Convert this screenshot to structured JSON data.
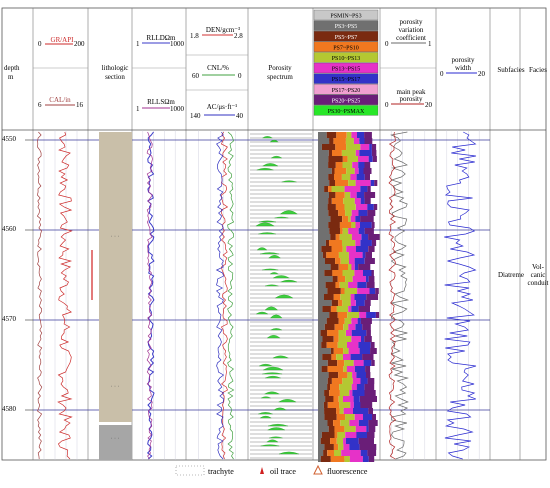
{
  "header": {
    "depth_title": "depth",
    "depth_unit": "m",
    "gr_label": "GR/API",
    "gr_min": "0",
    "gr_max": "200",
    "cal_label": "CAL/in",
    "cal_min": "6",
    "cal_max": "16",
    "litho_title_1": "lithologic",
    "litho_title_2": "section",
    "rlld_label": "RLLDΩm",
    "rlld_min": "1",
    "rlld_max": "1000",
    "rlls_label": "RLLSΩm",
    "rlls_min": "1",
    "rlls_max": "1000",
    "den_label": "DEN/gcm⁻³",
    "den_min": "1.8",
    "den_max": "2.8",
    "cnl_label": "CNL/%",
    "cnl_min": "60",
    "cnl_max": "0",
    "ac_label": "AC/μs·ft⁻¹",
    "ac_min": "140",
    "ac_max": "40",
    "porosity_spectrum_1": "Porosity",
    "porosity_spectrum_2": "spectrum",
    "pvc_label_1": "porosity",
    "pvc_label_2": "variation",
    "pvc_label_3": "coefficient",
    "pvc_min": "0",
    "pvc_max": "1",
    "mpp_label_1": "main peak",
    "mpp_label_2": "porosity",
    "mpp_min": "0",
    "mpp_max": "20",
    "pw_label_1": "porosity",
    "pw_label_2": "width",
    "pw_min": "0",
    "pw_max": "20",
    "subfacies_title": "Subfacies",
    "facies_title": "Facies"
  },
  "bins": [
    {
      "label": "PSMIN~PS3",
      "color": "#c8c8c8",
      "text_color": "#000000"
    },
    {
      "label": "PS3~PS5",
      "color": "#707070",
      "text_color": "#ffffff"
    },
    {
      "label": "PS5~PS7",
      "color": "#7a2a10",
      "text_color": "#ffffff"
    },
    {
      "label": "PS7~PS10",
      "color": "#f07820",
      "text_color": "#000000"
    },
    {
      "label": "PS10~PS13",
      "color": "#b4c832",
      "text_color": "#000000"
    },
    {
      "label": "PS13~PS15",
      "color": "#e632c8",
      "text_color": "#000000"
    },
    {
      "label": "PS15~PS17",
      "color": "#3232c8",
      "text_color": "#000000"
    },
    {
      "label": "PS17~PS20",
      "color": "#f0a0d0",
      "text_color": "#000000"
    },
    {
      "label": "PS20~PS25",
      "color": "#6a1e78",
      "text_color": "#ffffff"
    },
    {
      "label": "PS30~PSMAX",
      "color": "#28e628",
      "text_color": "#000000"
    }
  ],
  "depth_ticks": [
    "4550",
    "4560",
    "4570",
    "4580"
  ],
  "depth_range": [
    4550,
    4586
  ],
  "subfacies": "Diatreme",
  "facies_lines": [
    "Vol-",
    "canic",
    "conduit"
  ],
  "legend": {
    "trachyte": "trachyte",
    "oil_trace": "oil trace",
    "fluorescence": "fluorescence"
  },
  "colors": {
    "grid_blue": "#3a3a9a",
    "lith_tan": "#c9bfa9",
    "lith_gray": "#a6a6a6",
    "gr_curve": "#cc2a2a",
    "cal_curve": "#a04040",
    "rlld_curve": "#3a3ac8",
    "rlls_curve": "#a03090",
    "den_curve": "#d03030",
    "cnl_curve": "#40a040",
    "ac_curve": "#3030c0",
    "spectrum_green": "#3fcf3f",
    "pvc_curve": "#6a6a6a",
    "mpp_curve": "#b02020",
    "pw_curve": "#2a2ad0"
  }
}
